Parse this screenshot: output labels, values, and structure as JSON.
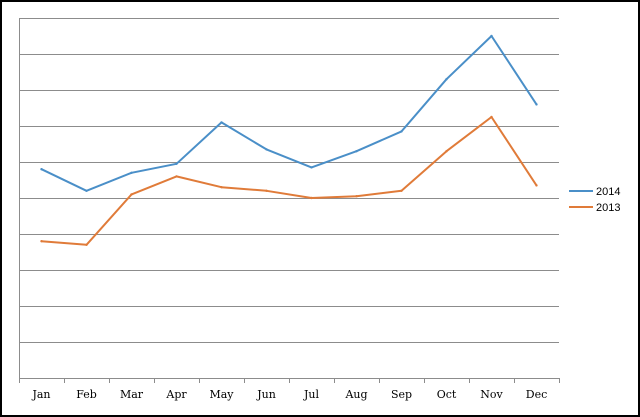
{
  "chart_data": {
    "type": "line",
    "categories": [
      "Jan",
      "Feb",
      "Mar",
      "Apr",
      "May",
      "Jun",
      "Jul",
      "Aug",
      "Sep",
      "Oct",
      "Nov",
      "Dec"
    ],
    "series": [
      {
        "name": "2014",
        "color": "#4a8fc8",
        "values": [
          5.8,
          5.2,
          5.7,
          5.95,
          7.1,
          6.35,
          5.85,
          6.3,
          6.85,
          8.3,
          9.5,
          7.6
        ]
      },
      {
        "name": "2013",
        "color": "#e07b39",
        "values": [
          3.8,
          3.7,
          5.1,
          5.6,
          5.3,
          5.2,
          5.0,
          5.05,
          5.2,
          6.3,
          7.25,
          5.35
        ]
      }
    ],
    "ylim": [
      0,
      10
    ],
    "y_gridlines": 10,
    "y_tick_labels_shown": false,
    "grid": true,
    "legend_position": "right"
  }
}
